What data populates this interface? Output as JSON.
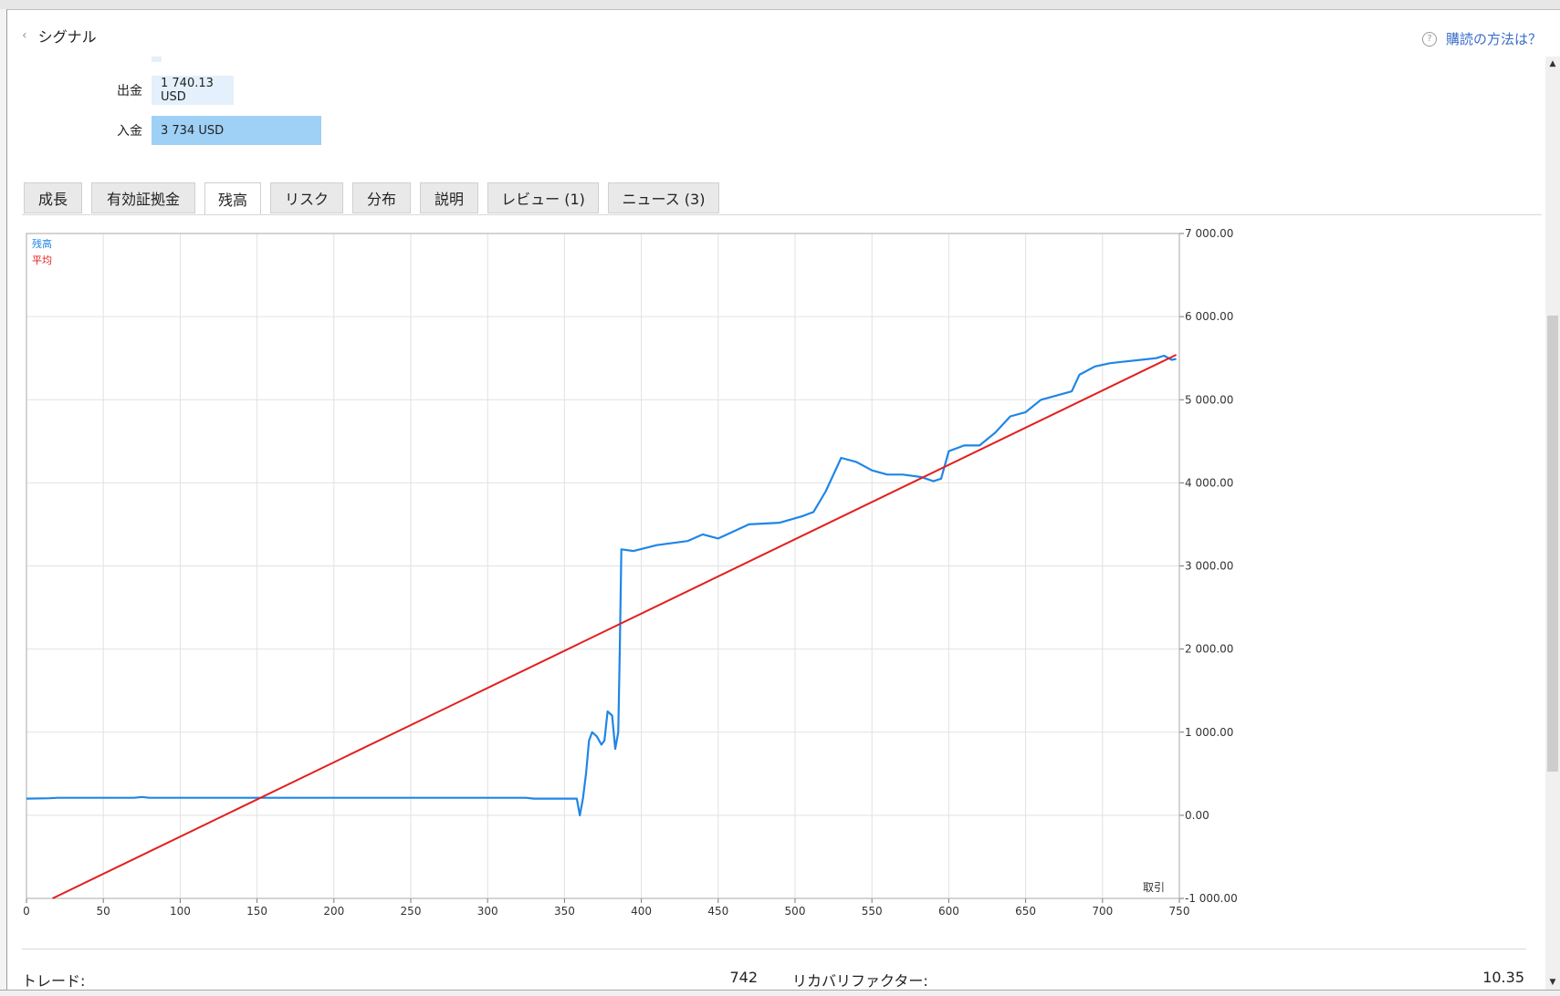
{
  "header": {
    "back_icon": "chevron-left-icon",
    "title": "シグナル",
    "help_icon": "question-circle-icon",
    "help_text": "購読の方法は？"
  },
  "stats_top": {
    "withdrawal": {
      "label": "出金",
      "value": "1 740.13 USD",
      "bar_color": "#e4f0fb"
    },
    "deposit": {
      "label": "入金",
      "value": "3 734 USD",
      "bar_color": "#9fd0f6"
    }
  },
  "tabs": [
    {
      "label": "成長"
    },
    {
      "label": "有効証拠金"
    },
    {
      "label": "残高",
      "active": true
    },
    {
      "label": "リスク"
    },
    {
      "label": "分布"
    },
    {
      "label": "説明"
    },
    {
      "label": "レビュー (1)"
    },
    {
      "label": "ニュース (3)"
    }
  ],
  "chart_data": {
    "type": "line",
    "xlabel": "取引",
    "xlim": [
      0,
      750
    ],
    "ylim": [
      -1000,
      7000
    ],
    "x_ticks": [
      0,
      50,
      100,
      150,
      200,
      250,
      300,
      350,
      400,
      450,
      500,
      550,
      600,
      650,
      700,
      750
    ],
    "y_ticks": [
      -1000,
      0,
      1000,
      2000,
      3000,
      4000,
      5000,
      6000,
      7000
    ],
    "y_tick_labels": [
      "-1 000.00",
      "0.00",
      "1 000.00",
      "2 000.00",
      "3 000.00",
      "4 000.00",
      "5 000.00",
      "6 000.00",
      "7 000.00"
    ],
    "grid": true,
    "legend_position": "top-left",
    "series": [
      {
        "name": "残高",
        "color": "#1f86e6",
        "points": [
          [
            0,
            200
          ],
          [
            15,
            205
          ],
          [
            20,
            210
          ],
          [
            70,
            210
          ],
          [
            75,
            220
          ],
          [
            80,
            210
          ],
          [
            150,
            210
          ],
          [
            200,
            210
          ],
          [
            250,
            210
          ],
          [
            325,
            210
          ],
          [
            330,
            200
          ],
          [
            358,
            200
          ],
          [
            360,
            0
          ],
          [
            362,
            200
          ],
          [
            364,
            500
          ],
          [
            366,
            900
          ],
          [
            368,
            1000
          ],
          [
            371,
            950
          ],
          [
            374,
            850
          ],
          [
            376,
            900
          ],
          [
            378,
            1250
          ],
          [
            381,
            1200
          ],
          [
            383,
            800
          ],
          [
            385,
            1000
          ],
          [
            386,
            2000
          ],
          [
            387,
            3200
          ],
          [
            395,
            3180
          ],
          [
            410,
            3250
          ],
          [
            430,
            3300
          ],
          [
            440,
            3380
          ],
          [
            450,
            3330
          ],
          [
            470,
            3500
          ],
          [
            490,
            3520
          ],
          [
            505,
            3600
          ],
          [
            512,
            3650
          ],
          [
            520,
            3900
          ],
          [
            530,
            4300
          ],
          [
            540,
            4250
          ],
          [
            550,
            4150
          ],
          [
            560,
            4100
          ],
          [
            570,
            4100
          ],
          [
            582,
            4070
          ],
          [
            590,
            4020
          ],
          [
            595,
            4050
          ],
          [
            600,
            4380
          ],
          [
            610,
            4450
          ],
          [
            620,
            4450
          ],
          [
            630,
            4600
          ],
          [
            640,
            4800
          ],
          [
            650,
            4850
          ],
          [
            660,
            5000
          ],
          [
            670,
            5050
          ],
          [
            680,
            5100
          ],
          [
            685,
            5300
          ],
          [
            695,
            5400
          ],
          [
            705,
            5440
          ],
          [
            715,
            5460
          ],
          [
            725,
            5480
          ],
          [
            735,
            5500
          ],
          [
            740,
            5530
          ],
          [
            745,
            5480
          ],
          [
            748,
            5490
          ]
        ]
      },
      {
        "name": "平均",
        "color": "#e31e1e",
        "points": [
          [
            17,
            -1000
          ],
          [
            748,
            5540
          ]
        ]
      }
    ]
  },
  "stats_bottom": {
    "trades_label": "トレード:",
    "trades_value": "742",
    "recovery_label": "リカバリファクター:",
    "recovery_value": "10.35"
  }
}
